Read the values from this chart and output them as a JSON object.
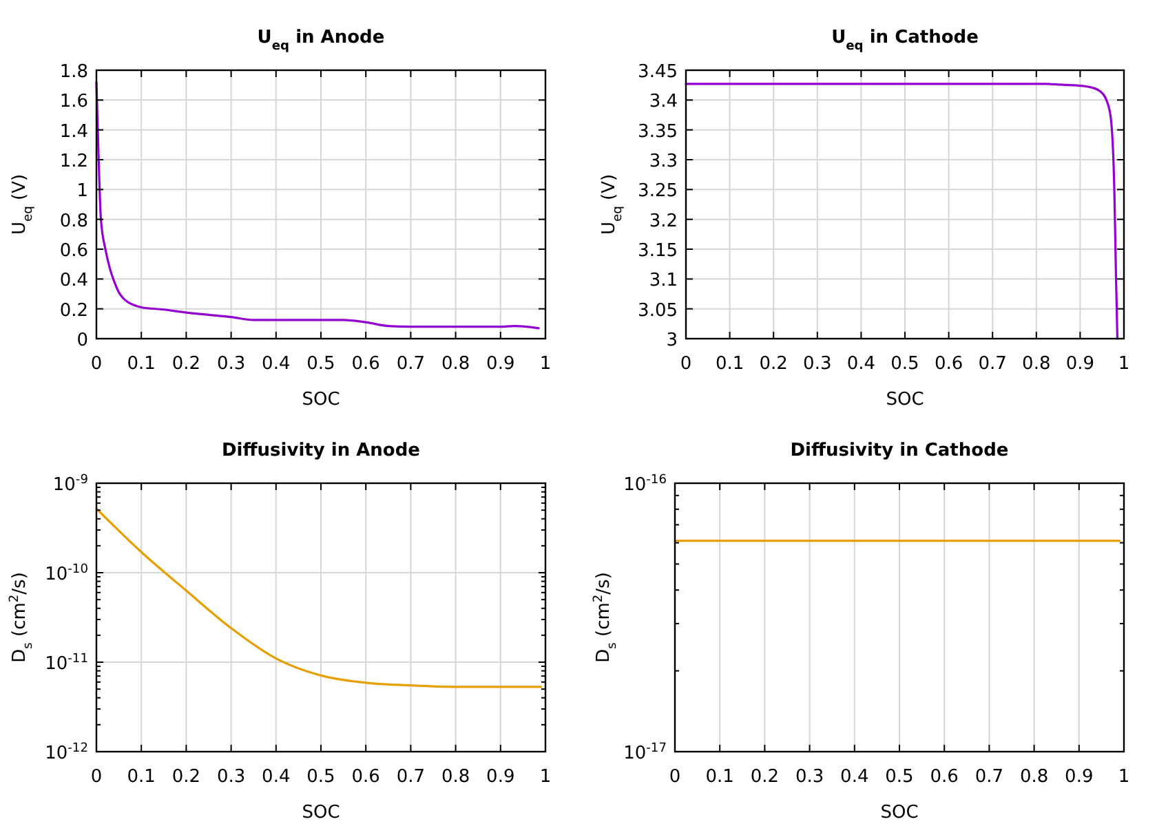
{
  "chart_data": [
    {
      "type": "line",
      "title": "U$_{eq}$ in Anode",
      "xlabel": "SOC",
      "ylabel": "U$_{eq}$ (V)",
      "grid": true,
      "xlim": [
        0,
        1
      ],
      "xticks": [
        0,
        0.1,
        0.2,
        0.3,
        0.4,
        0.5,
        0.6,
        0.7,
        0.8,
        0.9,
        1
      ],
      "ylim": [
        0,
        1.8
      ],
      "yticks": [
        0,
        0.2,
        0.4,
        0.6,
        0.8,
        1,
        1.2,
        1.4,
        1.6,
        1.8
      ],
      "series": [
        {
          "color": "#9400d3",
          "x": [
            0,
            0.005,
            0.01,
            0.02,
            0.03,
            0.04,
            0.05,
            0.06,
            0.07,
            0.08,
            0.1,
            0.15,
            0.2,
            0.25,
            0.3,
            0.35,
            0.4,
            0.5,
            0.55,
            0.6,
            0.65,
            0.7,
            0.8,
            0.9,
            0.93,
            0.985
          ],
          "values": [
            1.72,
            1.2,
            0.8,
            0.6,
            0.47,
            0.38,
            0.31,
            0.27,
            0.245,
            0.23,
            0.21,
            0.195,
            0.175,
            0.16,
            0.145,
            0.125,
            0.125,
            0.125,
            0.125,
            0.11,
            0.085,
            0.08,
            0.08,
            0.08,
            0.085,
            0.07
          ]
        }
      ]
    },
    {
      "type": "line",
      "title": "U$_{eq}$ in Cathode",
      "xlabel": "SOC",
      "ylabel": "U$_{eq}$ (V)",
      "grid": true,
      "xlim": [
        0,
        1
      ],
      "xticks": [
        0,
        0.1,
        0.2,
        0.3,
        0.4,
        0.5,
        0.6,
        0.7,
        0.8,
        0.9,
        1
      ],
      "ylim": [
        3,
        3.45
      ],
      "yticks": [
        3,
        3.05,
        3.1,
        3.15,
        3.2,
        3.25,
        3.3,
        3.35,
        3.4,
        3.45
      ],
      "series": [
        {
          "color": "#9400d3",
          "x": [
            0,
            0.5,
            0.82,
            0.85,
            0.88,
            0.92,
            0.945,
            0.96,
            0.97,
            0.978,
            0.982,
            0.985
          ],
          "values": [
            3.427,
            3.427,
            3.427,
            3.426,
            3.425,
            3.422,
            3.415,
            3.4,
            3.37,
            3.25,
            3.1,
            3.0
          ]
        }
      ]
    },
    {
      "type": "line",
      "title": "Diffusivity in Anode",
      "xlabel": "SOC",
      "ylabel": "D$_{s}$ (cm$^{2}$/s)",
      "grid": true,
      "log": "y",
      "xlim": [
        0,
        1
      ],
      "xticks": [
        0,
        0.1,
        0.2,
        0.3,
        0.4,
        0.5,
        0.6,
        0.7,
        0.8,
        0.9,
        1
      ],
      "ylim": [
        1e-12,
        1e-09
      ],
      "yticks": [
        {
          "value": 1e-12,
          "label": "10$^{-12}$"
        },
        {
          "value": 1e-11,
          "label": "10$^{-11}$"
        },
        {
          "value": 1e-10,
          "label": "10$^{-10}$"
        },
        {
          "value": 1e-09,
          "label": "10$^{-9}$"
        }
      ],
      "series": [
        {
          "color": "#e69f00",
          "x": [
            0,
            0.1,
            0.2,
            0.3,
            0.4,
            0.5,
            0.6,
            0.7,
            0.8,
            0.99
          ],
          "values": [
            5.2e-10,
            1.7e-10,
            6.3e-11,
            2.4e-11,
            1.1e-11,
            7.1e-12,
            5.9e-12,
            5.5e-12,
            5.3e-12,
            5.3e-12
          ]
        }
      ]
    },
    {
      "type": "line",
      "title": "Diffusivity in Cathode",
      "xlabel": "SOC",
      "ylabel": "D$_{s}$ (cm$^{2}$/s)",
      "grid": true,
      "log": "y",
      "xlim": [
        0,
        1
      ],
      "xticks": [
        0,
        0.1,
        0.2,
        0.3,
        0.4,
        0.5,
        0.6,
        0.7,
        0.8,
        0.9,
        1
      ],
      "ylim": [
        1e-17,
        1e-16
      ],
      "yticks": [
        {
          "value": 1e-17,
          "label": "10$^{-17}$"
        },
        {
          "value": 1e-16,
          "label": "10$^{-16}$"
        }
      ],
      "series": [
        {
          "color": "#e69f00",
          "x": [
            0,
            0.99
          ],
          "values": [
            6.1e-17,
            6.1e-17
          ]
        }
      ]
    }
  ]
}
